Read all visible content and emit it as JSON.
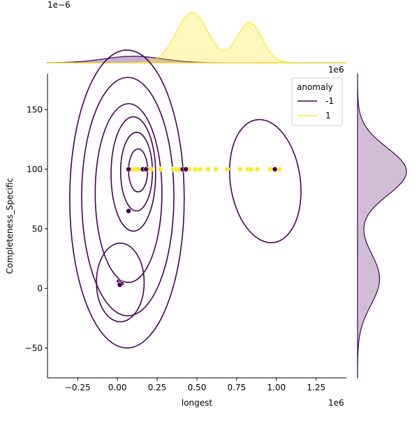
{
  "chart_data": {
    "type": "scatter",
    "title": "",
    "xlabel": "longest",
    "ylabel": "Completeness_Specific",
    "x_offset_text": "1e6",
    "y_offset_text": "1e6",
    "top_marginal_offset_text": "1e−6",
    "x_scale_factor": 1000000,
    "xlim": [
      -0.44,
      1.44
    ],
    "ylim": [
      -75,
      180
    ],
    "x_ticks": [
      -0.25,
      0.0,
      0.25,
      0.5,
      0.75,
      1.0,
      1.25
    ],
    "x_tick_labels": [
      "−0.25",
      "0.00",
      "0.25",
      "0.50",
      "0.75",
      "1.00",
      "1.25"
    ],
    "y_ticks": [
      -50,
      0,
      50,
      100,
      150
    ],
    "y_tick_labels": [
      "−50",
      "0",
      "50",
      "100",
      "150"
    ],
    "grid": false,
    "legend": {
      "title": "anomaly",
      "placement": "top-right",
      "entries": [
        {
          "label": "-1",
          "color": "#440154"
        },
        {
          "label": "1",
          "color": "#fde725"
        }
      ]
    },
    "series": [
      {
        "name": "1",
        "color": "#fde725",
        "points": [
          {
            "x": 0.09,
            "y": 100
          },
          {
            "x": 0.11,
            "y": 100
          },
          {
            "x": 0.13,
            "y": 100
          },
          {
            "x": 0.2,
            "y": 100
          },
          {
            "x": 0.21,
            "y": 100
          },
          {
            "x": 0.27,
            "y": 100
          },
          {
            "x": 0.35,
            "y": 100
          },
          {
            "x": 0.37,
            "y": 100
          },
          {
            "x": 0.39,
            "y": 100
          },
          {
            "x": 0.45,
            "y": 100
          },
          {
            "x": 0.49,
            "y": 100
          },
          {
            "x": 0.52,
            "y": 100
          },
          {
            "x": 0.57,
            "y": 100
          },
          {
            "x": 0.62,
            "y": 100
          },
          {
            "x": 0.69,
            "y": 100
          },
          {
            "x": 0.77,
            "y": 100
          },
          {
            "x": 0.82,
            "y": 100
          },
          {
            "x": 0.84,
            "y": 100
          },
          {
            "x": 0.88,
            "y": 100
          },
          {
            "x": 0.96,
            "y": 100
          },
          {
            "x": 1.02,
            "y": 100
          }
        ]
      },
      {
        "name": "-1",
        "color": "#440154",
        "points": [
          {
            "x": 0.07,
            "y": 100
          },
          {
            "x": 0.16,
            "y": 100
          },
          {
            "x": 0.18,
            "y": 100
          },
          {
            "x": 0.41,
            "y": 100
          },
          {
            "x": 0.43,
            "y": 100
          },
          {
            "x": 0.99,
            "y": 100
          },
          {
            "x": 0.07,
            "y": 65
          },
          {
            "x": 0.01,
            "y": 6
          },
          {
            "x": 0.02,
            "y": 5
          },
          {
            "x": 0.025,
            "y": 4
          },
          {
            "x": 0.015,
            "y": 3
          }
        ]
      }
    ],
    "kde_contours": {
      "series": "-1",
      "color": "#440154",
      "main_levels": [
        {
          "cx": 0.06,
          "cy": 75,
          "rx": 0.36,
          "ry": 125
        },
        {
          "cx": 0.065,
          "cy": 77,
          "rx": 0.29,
          "ry": 100
        },
        {
          "cx": 0.07,
          "cy": 80,
          "rx": 0.21,
          "ry": 75
        },
        {
          "cx": 0.1,
          "cy": 96,
          "rx": 0.14,
          "ry": 48
        },
        {
          "cx": 0.12,
          "cy": 98,
          "rx": 0.1,
          "ry": 33
        },
        {
          "cx": 0.13,
          "cy": 99,
          "rx": 0.06,
          "ry": 18
        }
      ],
      "secondary_island": {
        "cx": 0.018,
        "cy": 5,
        "rx": 0.15,
        "ry": 33
      },
      "right_island": {
        "cx": 0.93,
        "cy": 90,
        "rx": 0.22,
        "ry": 52,
        "rotation": -8
      }
    },
    "marginal_x": {
      "series": [
        {
          "name": "1",
          "color": "#fde725",
          "peaks": [
            {
              "mu": 0.47,
              "sigma": 0.1,
              "weight": 1.0
            },
            {
              "mu": 0.83,
              "sigma": 0.08,
              "weight": 0.8
            }
          ]
        },
        {
          "name": "-1",
          "color": "#440154",
          "peaks": [
            {
              "mu": 0.1,
              "sigma": 0.18,
              "weight": 0.13
            }
          ]
        }
      ]
    },
    "marginal_y": {
      "series": [
        {
          "name": "-1",
          "color": "#440154",
          "peaks": [
            {
              "mu": 98,
              "sigma": 20,
              "weight": 1.0
            },
            {
              "mu": 8,
              "sigma": 22,
              "weight": 0.45
            }
          ]
        }
      ]
    }
  }
}
